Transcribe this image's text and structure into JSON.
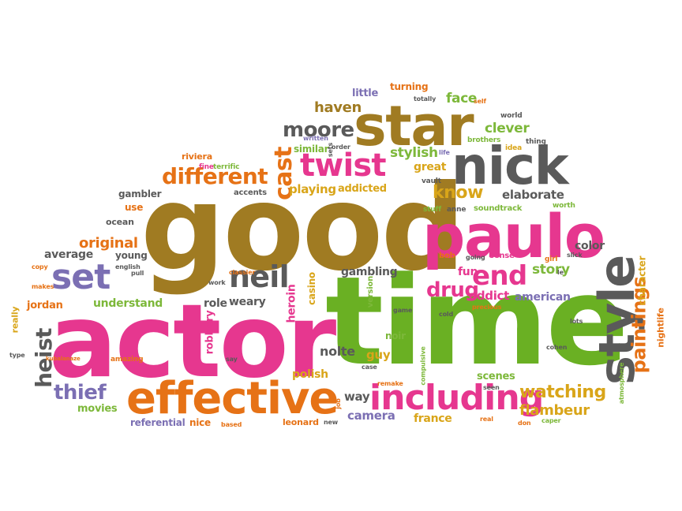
{
  "palette": {
    "brown": "#a07b22",
    "pink": "#e6378f",
    "green": "#6ab023",
    "orange": "#e67216",
    "purple": "#7b6fb3",
    "gray": "#5a5a5a",
    "gold": "#d9a519",
    "lightgreen": "#7db83a"
  },
  "words": [
    {
      "text": "good",
      "color": "brown"
    },
    {
      "text": "actor",
      "color": "pink"
    },
    {
      "text": "time",
      "color": "green"
    },
    {
      "text": "paulo",
      "color": "pink"
    },
    {
      "text": "star",
      "color": "brown"
    },
    {
      "text": "nick",
      "color": "gray"
    },
    {
      "text": "style",
      "color": "gray"
    },
    {
      "text": "effective",
      "color": "orange"
    },
    {
      "text": "including",
      "color": "pink"
    },
    {
      "text": "set",
      "color": "purple"
    },
    {
      "text": "twist",
      "color": "pink"
    },
    {
      "text": "neil",
      "color": "gray"
    },
    {
      "text": "end",
      "color": "pink"
    },
    {
      "text": "paintings",
      "color": "orange"
    },
    {
      "text": "different",
      "color": "orange"
    },
    {
      "text": "cast",
      "color": "orange"
    },
    {
      "text": "moore",
      "color": "gray"
    },
    {
      "text": "watching",
      "color": "gold"
    },
    {
      "text": "heist",
      "color": "gray"
    },
    {
      "text": "thief",
      "color": "purple"
    },
    {
      "text": "drug",
      "color": "pink"
    },
    {
      "text": "know",
      "color": "gold"
    },
    {
      "text": "story",
      "color": "lightgreen"
    },
    {
      "text": "flambeur",
      "color": "gold"
    },
    {
      "text": "original",
      "color": "orange"
    },
    {
      "text": "haven",
      "color": "brown"
    },
    {
      "text": "clever",
      "color": "lightgreen"
    },
    {
      "text": "stylish",
      "color": "lightgreen"
    },
    {
      "text": "face",
      "color": "lightgreen"
    },
    {
      "text": "playing",
      "color": "gold"
    },
    {
      "text": "addicted",
      "color": "gold"
    },
    {
      "text": "elaborate",
      "color": "gray"
    },
    {
      "text": "average",
      "color": "gray"
    },
    {
      "text": "understand",
      "color": "lightgreen"
    },
    {
      "text": "role",
      "color": "gray"
    },
    {
      "text": "weary",
      "color": "gray"
    },
    {
      "text": "heroin",
      "color": "pink"
    },
    {
      "text": "casino",
      "color": "gold"
    },
    {
      "text": "gambling",
      "color": "gray"
    },
    {
      "text": "fun",
      "color": "pink"
    },
    {
      "text": "addict",
      "color": "pink"
    },
    {
      "text": "american",
      "color": "purple"
    },
    {
      "text": "color",
      "color": "gray"
    },
    {
      "text": "character",
      "color": "gold"
    },
    {
      "text": "robbery",
      "color": "pink"
    },
    {
      "text": "nolte",
      "color": "gray"
    },
    {
      "text": "guy",
      "color": "gold"
    },
    {
      "text": "polish",
      "color": "gold"
    },
    {
      "text": "camera",
      "color": "purple"
    },
    {
      "text": "france",
      "color": "gold"
    },
    {
      "text": "way",
      "color": "gray"
    },
    {
      "text": "scenes",
      "color": "lightgreen"
    },
    {
      "text": "movies",
      "color": "lightgreen"
    },
    {
      "text": "referential",
      "color": "purple"
    },
    {
      "text": "nice",
      "color": "orange"
    },
    {
      "text": "leonard",
      "color": "orange"
    },
    {
      "text": "jordan",
      "color": "orange"
    },
    {
      "text": "young",
      "color": "gray"
    },
    {
      "text": "noir",
      "color": "lightgreen"
    },
    {
      "text": "great",
      "color": "gold"
    },
    {
      "text": "turning",
      "color": "orange"
    },
    {
      "text": "little",
      "color": "purple"
    },
    {
      "text": "similar",
      "color": "lightgreen"
    },
    {
      "text": "riviera",
      "color": "orange"
    },
    {
      "text": "gambler",
      "color": "gray"
    },
    {
      "text": "use",
      "color": "orange"
    },
    {
      "text": "ocean",
      "color": "gray"
    },
    {
      "text": "really",
      "color": "gold"
    },
    {
      "text": "nightlife",
      "color": "orange"
    },
    {
      "text": "version",
      "color": "lightgreen"
    },
    {
      "text": "soundtrack",
      "color": "lightgreen"
    },
    {
      "text": "accents",
      "color": "gray"
    },
    {
      "text": "amazing",
      "color": "orange"
    },
    {
      "text": "brothers",
      "color": "lightgreen"
    },
    {
      "text": "terrific",
      "color": "lightgreen"
    },
    {
      "text": "fine",
      "color": "pink"
    },
    {
      "text": "world",
      "color": "gray"
    },
    {
      "text": "thing",
      "color": "gray"
    },
    {
      "text": "idea",
      "color": "gold"
    },
    {
      "text": "worth",
      "color": "lightgreen"
    },
    {
      "text": "vault",
      "color": "gray"
    },
    {
      "text": "stuff",
      "color": "lightgreen"
    },
    {
      "text": "anne",
      "color": "gray"
    },
    {
      "text": "sense",
      "color": "pink"
    },
    {
      "text": "bob",
      "color": "orange"
    },
    {
      "text": "going",
      "color": "gray"
    },
    {
      "text": "girl",
      "color": "orange"
    },
    {
      "text": "slick",
      "color": "gray"
    },
    {
      "text": "le",
      "color": "gray"
    },
    {
      "text": "lots",
      "color": "gray"
    },
    {
      "text": "cohen",
      "color": "gray"
    },
    {
      "text": "atmosphere",
      "color": "lightgreen"
    },
    {
      "text": "remake",
      "color": "orange"
    },
    {
      "text": "case",
      "color": "gray"
    },
    {
      "text": "compulsive",
      "color": "lightgreen"
    },
    {
      "text": "seen",
      "color": "gray"
    },
    {
      "text": "real",
      "color": "orange"
    },
    {
      "text": "don",
      "color": "orange"
    },
    {
      "text": "caper",
      "color": "lightgreen"
    },
    {
      "text": "based",
      "color": "orange"
    },
    {
      "text": "new",
      "color": "gray"
    },
    {
      "text": "job",
      "color": "orange"
    },
    {
      "text": "say",
      "color": "gray"
    },
    {
      "text": "work",
      "color": "gray"
    },
    {
      "text": "classier",
      "color": "orange"
    },
    {
      "text": "english",
      "color": "gray"
    },
    {
      "text": "pull",
      "color": "gray"
    },
    {
      "text": "copy",
      "color": "orange"
    },
    {
      "text": "makes",
      "color": "orange"
    },
    {
      "text": "type",
      "color": "gray"
    },
    {
      "text": "kubalanaze",
      "color": "orange"
    },
    {
      "text": "written",
      "color": "purple"
    },
    {
      "text": "totally",
      "color": "gray"
    },
    {
      "text": "self",
      "color": "orange"
    },
    {
      "text": "sets",
      "color": "gray"
    },
    {
      "text": "order",
      "color": "gray"
    },
    {
      "text": "life",
      "color": "purple"
    },
    {
      "text": "precious",
      "color": "orange"
    },
    {
      "text": "game",
      "color": "gray"
    },
    {
      "text": "cold",
      "color": "gray"
    }
  ]
}
